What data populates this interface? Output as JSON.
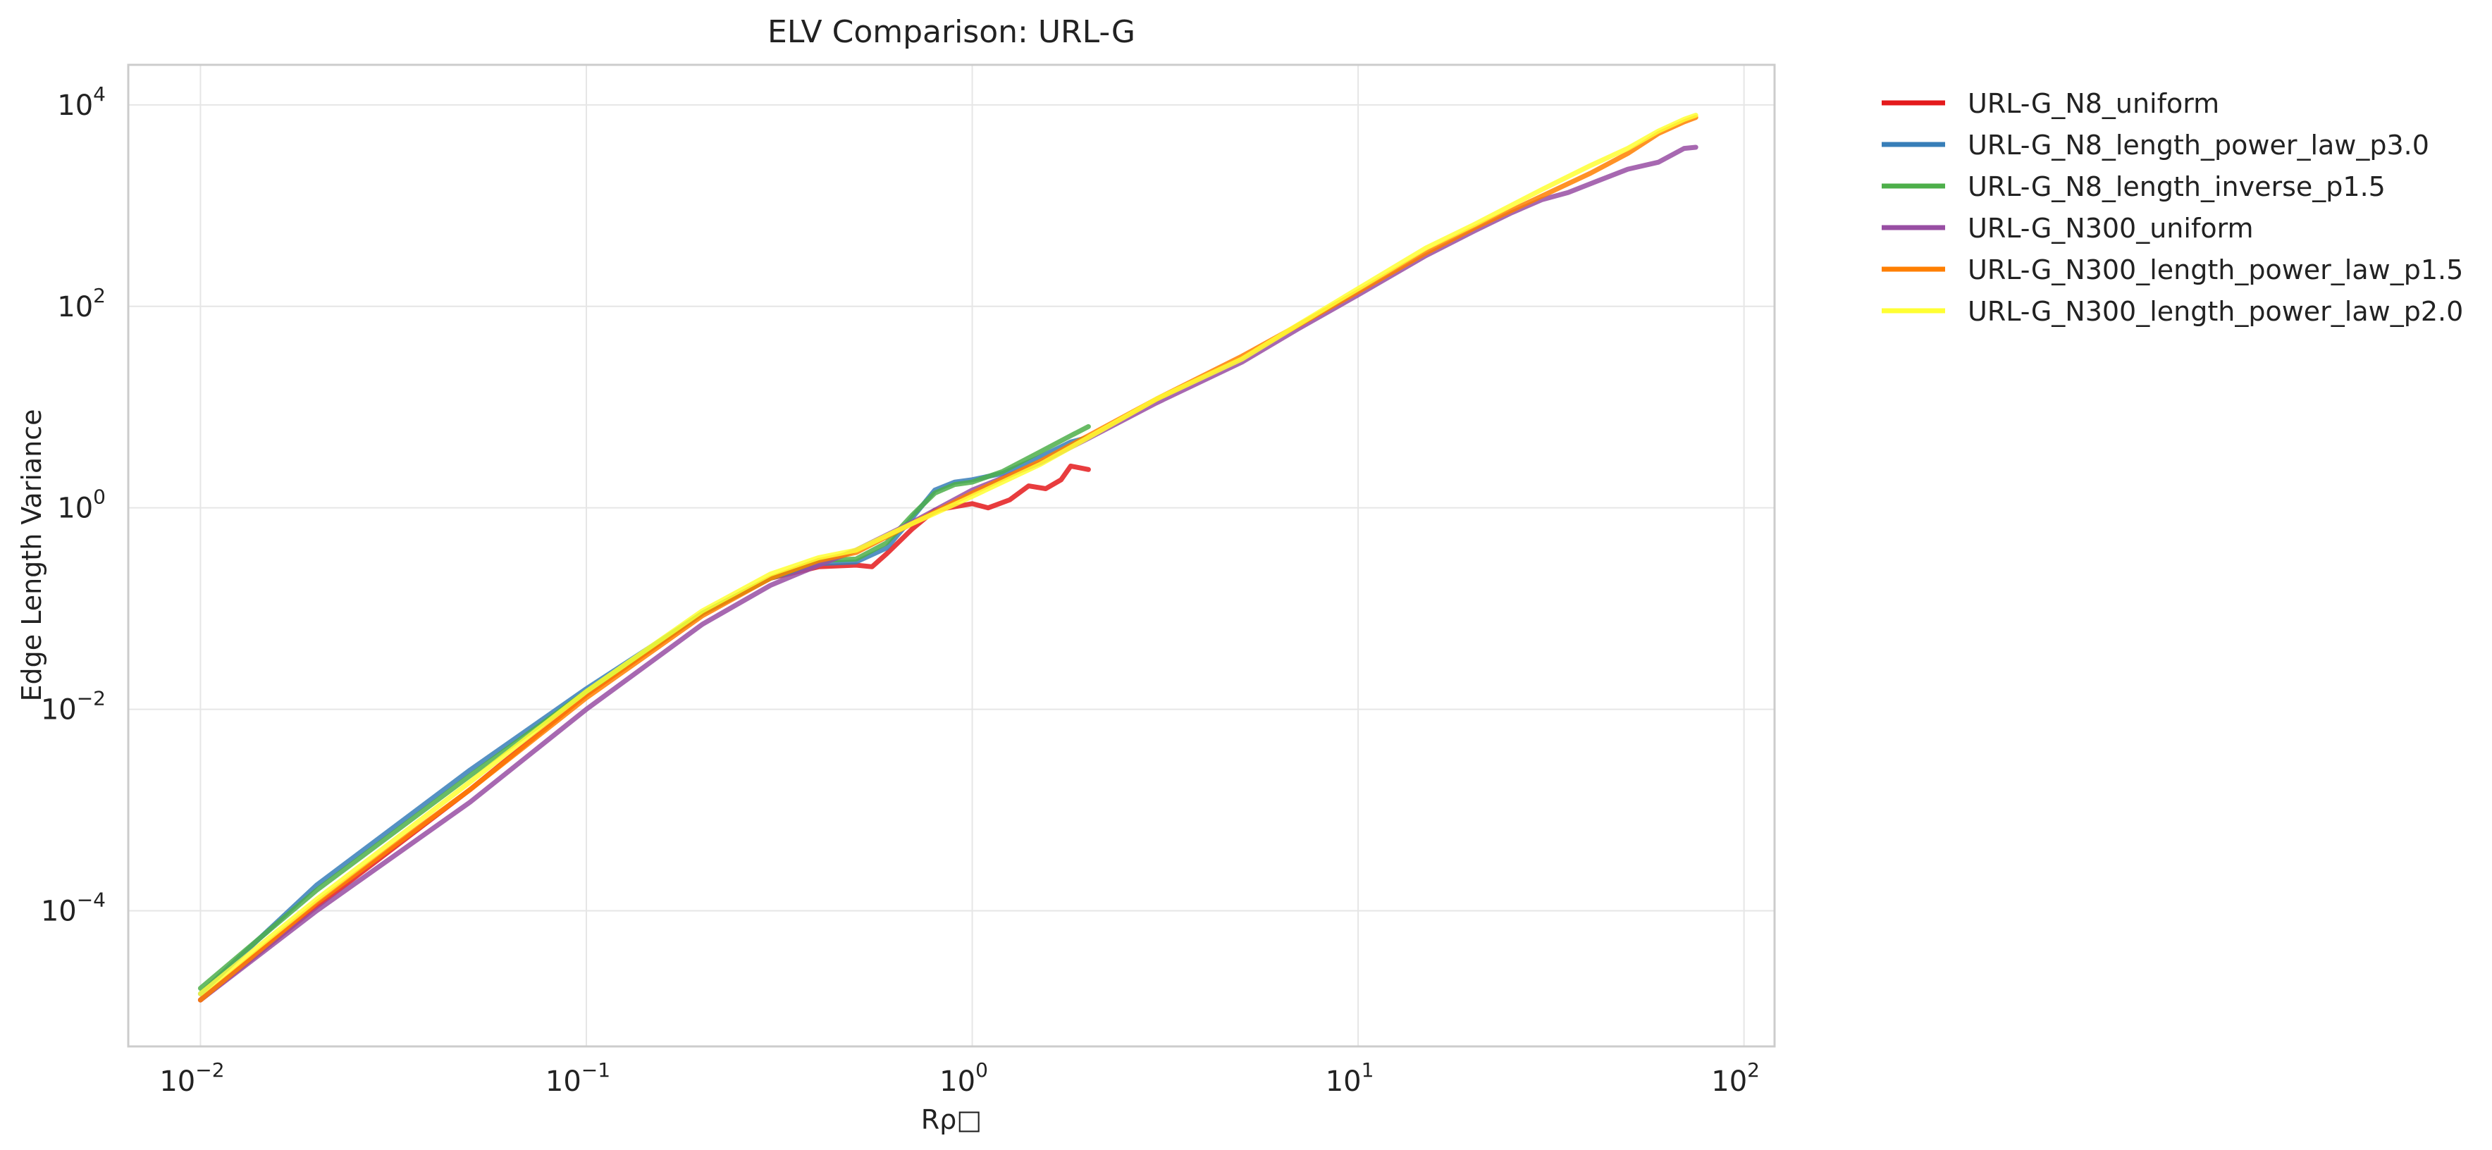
{
  "chart_data": {
    "type": "line",
    "title": "ELV Comparison: URL-G",
    "xlabel": "Rρ□",
    "ylabel": "Edge Length Variance",
    "xscale": "log",
    "yscale": "log",
    "xlim": [
      0.0065,
      120
    ],
    "ylim": [
      4.5e-06,
      25000
    ],
    "grid": true,
    "legend_position": "outside-top-right",
    "x_ticks": [
      {
        "value": 0.01,
        "base": "10",
        "exp": "−2"
      },
      {
        "value": 0.1,
        "base": "10",
        "exp": "−1"
      },
      {
        "value": 1,
        "base": "10",
        "exp": "0"
      },
      {
        "value": 10,
        "base": "10",
        "exp": "1"
      },
      {
        "value": 100,
        "base": "10",
        "exp": "2"
      }
    ],
    "y_ticks": [
      {
        "value": 0.0001,
        "base": "10",
        "exp": "−4"
      },
      {
        "value": 0.01,
        "base": "10",
        "exp": "−2"
      },
      {
        "value": 1,
        "base": "10",
        "exp": "0"
      },
      {
        "value": 100,
        "base": "10",
        "exp": "2"
      },
      {
        "value": 10000,
        "base": "10",
        "exp": "4"
      }
    ],
    "series": [
      {
        "name": "URL-G_N8_uniform",
        "color": "#e41a1c",
        "points": [
          [
            0.01,
            1.3e-05
          ],
          [
            0.02,
            0.00011
          ],
          [
            0.05,
            0.0016
          ],
          [
            0.1,
            0.014
          ],
          [
            0.2,
            0.09
          ],
          [
            0.3,
            0.2
          ],
          [
            0.4,
            0.26
          ],
          [
            0.5,
            0.27
          ],
          [
            0.55,
            0.26
          ],
          [
            0.6,
            0.35
          ],
          [
            0.7,
            0.62
          ],
          [
            0.8,
            0.95
          ],
          [
            1.0,
            1.1
          ],
          [
            1.1,
            1.0
          ],
          [
            1.25,
            1.2
          ],
          [
            1.4,
            1.65
          ],
          [
            1.55,
            1.55
          ],
          [
            1.7,
            1.9
          ],
          [
            1.8,
            2.6
          ],
          [
            2.0,
            2.4
          ]
        ]
      },
      {
        "name": "URL-G_N8_length_power_law_p3.0",
        "color": "#377eb8",
        "points": [
          [
            0.01,
            1.5e-05
          ],
          [
            0.02,
            0.00018
          ],
          [
            0.05,
            0.0025
          ],
          [
            0.1,
            0.016
          ],
          [
            0.2,
            0.09
          ],
          [
            0.3,
            0.2
          ],
          [
            0.4,
            0.28
          ],
          [
            0.5,
            0.29
          ],
          [
            0.6,
            0.4
          ],
          [
            0.7,
            0.8
          ],
          [
            0.8,
            1.5
          ],
          [
            0.9,
            1.8
          ],
          [
            1.0,
            1.9
          ],
          [
            1.2,
            2.2
          ],
          [
            1.5,
            3.2
          ],
          [
            1.8,
            4.5
          ],
          [
            2.0,
            5.0
          ]
        ]
      },
      {
        "name": "URL-G_N8_length_inverse_p1.5",
        "color": "#4daf4a",
        "points": [
          [
            0.01,
            1.7e-05
          ],
          [
            0.02,
            0.00016
          ],
          [
            0.05,
            0.0022
          ],
          [
            0.1,
            0.015
          ],
          [
            0.2,
            0.09
          ],
          [
            0.3,
            0.2
          ],
          [
            0.4,
            0.3
          ],
          [
            0.5,
            0.31
          ],
          [
            0.6,
            0.45
          ],
          [
            0.7,
            0.85
          ],
          [
            0.8,
            1.4
          ],
          [
            0.9,
            1.7
          ],
          [
            1.0,
            1.8
          ],
          [
            1.2,
            2.3
          ],
          [
            1.5,
            3.6
          ],
          [
            1.8,
            5.2
          ],
          [
            2.0,
            6.4
          ]
        ]
      },
      {
        "name": "URL-G_N300_uniform",
        "color": "#984ea3",
        "points": [
          [
            0.01,
            1.3e-05
          ],
          [
            0.02,
            0.0001
          ],
          [
            0.05,
            0.0012
          ],
          [
            0.1,
            0.01
          ],
          [
            0.2,
            0.07
          ],
          [
            0.3,
            0.17
          ],
          [
            0.4,
            0.27
          ],
          [
            0.5,
            0.38
          ],
          [
            0.7,
            0.72
          ],
          [
            1.0,
            1.5
          ],
          [
            1.5,
            2.8
          ],
          [
            2.0,
            4.9
          ],
          [
            3.0,
            11
          ],
          [
            5.0,
            28
          ],
          [
            7.0,
            60
          ],
          [
            10.0,
            130
          ],
          [
            15.0,
            320
          ],
          [
            20.0,
            560
          ],
          [
            25.0,
            850
          ],
          [
            30.0,
            1150
          ],
          [
            35.0,
            1350
          ],
          [
            40.0,
            1650
          ],
          [
            50.0,
            2300
          ],
          [
            60.0,
            2700
          ],
          [
            70.0,
            3700
          ],
          [
            75.0,
            3800
          ]
        ]
      },
      {
        "name": "URL-G_N300_length_power_law_p1.5",
        "color": "#ff7f00",
        "points": [
          [
            0.01,
            1.3e-05
          ],
          [
            0.02,
            0.00012
          ],
          [
            0.05,
            0.0016
          ],
          [
            0.1,
            0.013
          ],
          [
            0.2,
            0.085
          ],
          [
            0.3,
            0.2
          ],
          [
            0.4,
            0.3
          ],
          [
            0.5,
            0.36
          ],
          [
            0.7,
            0.7
          ],
          [
            1.0,
            1.4
          ],
          [
            1.5,
            2.9
          ],
          [
            2.0,
            5.2
          ],
          [
            3.0,
            12
          ],
          [
            5.0,
            32
          ],
          [
            7.0,
            65
          ],
          [
            10.0,
            140
          ],
          [
            15.0,
            340
          ],
          [
            20.0,
            600
          ],
          [
            30.0,
            1250
          ],
          [
            40.0,
            2100
          ],
          [
            50.0,
            3300
          ],
          [
            60.0,
            5200
          ],
          [
            70.0,
            6800
          ],
          [
            75.0,
            7500
          ]
        ]
      },
      {
        "name": "URL-G_N300_length_power_law_p2.0",
        "color": "#ffff33",
        "points": [
          [
            0.01,
            1.5e-05
          ],
          [
            0.02,
            0.00013
          ],
          [
            0.05,
            0.0019
          ],
          [
            0.1,
            0.015
          ],
          [
            0.2,
            0.095
          ],
          [
            0.3,
            0.22
          ],
          [
            0.4,
            0.32
          ],
          [
            0.5,
            0.38
          ],
          [
            0.7,
            0.7
          ],
          [
            1.0,
            1.3
          ],
          [
            1.5,
            2.7
          ],
          [
            2.0,
            5.0
          ],
          [
            3.0,
            12
          ],
          [
            5.0,
            30
          ],
          [
            7.0,
            66
          ],
          [
            10.0,
            150
          ],
          [
            15.0,
            380
          ],
          [
            20.0,
            650
          ],
          [
            30.0,
            1450
          ],
          [
            40.0,
            2500
          ],
          [
            50.0,
            3700
          ],
          [
            60.0,
            5500
          ],
          [
            70.0,
            7200
          ],
          [
            75.0,
            7900
          ]
        ]
      }
    ]
  }
}
